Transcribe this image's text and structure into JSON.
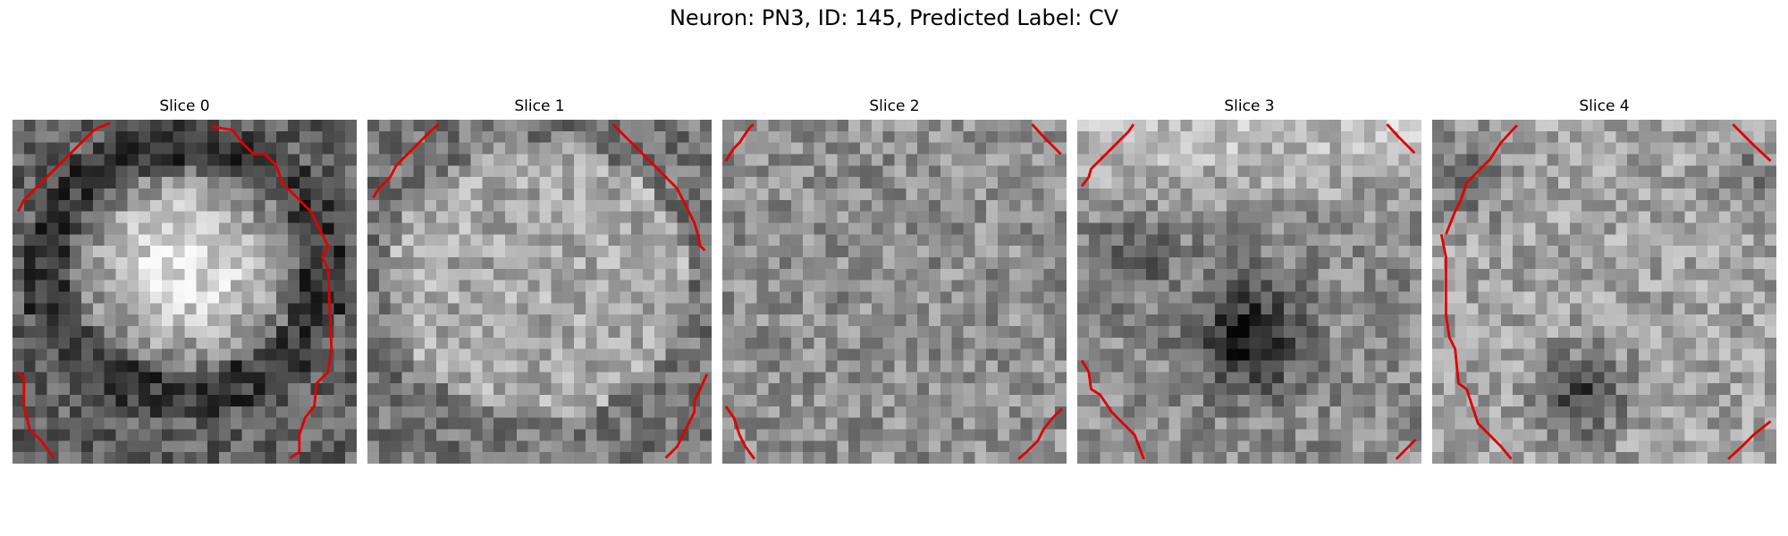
{
  "figure": {
    "title": "Neuron: PN3, ID: 145, Predicted Label: CV",
    "contour_color": "#e00000"
  },
  "panels": [
    {
      "label": "Slice 0",
      "pattern": "bright-center-blob"
    },
    {
      "label": "Slice 1",
      "pattern": "uniform-light"
    },
    {
      "label": "Slice 2",
      "pattern": "uniform-medium"
    },
    {
      "label": "Slice 3",
      "pattern": "top-bright-bottom-dark"
    },
    {
      "label": "Slice 4",
      "pattern": "light-with-dark-spot"
    }
  ]
}
